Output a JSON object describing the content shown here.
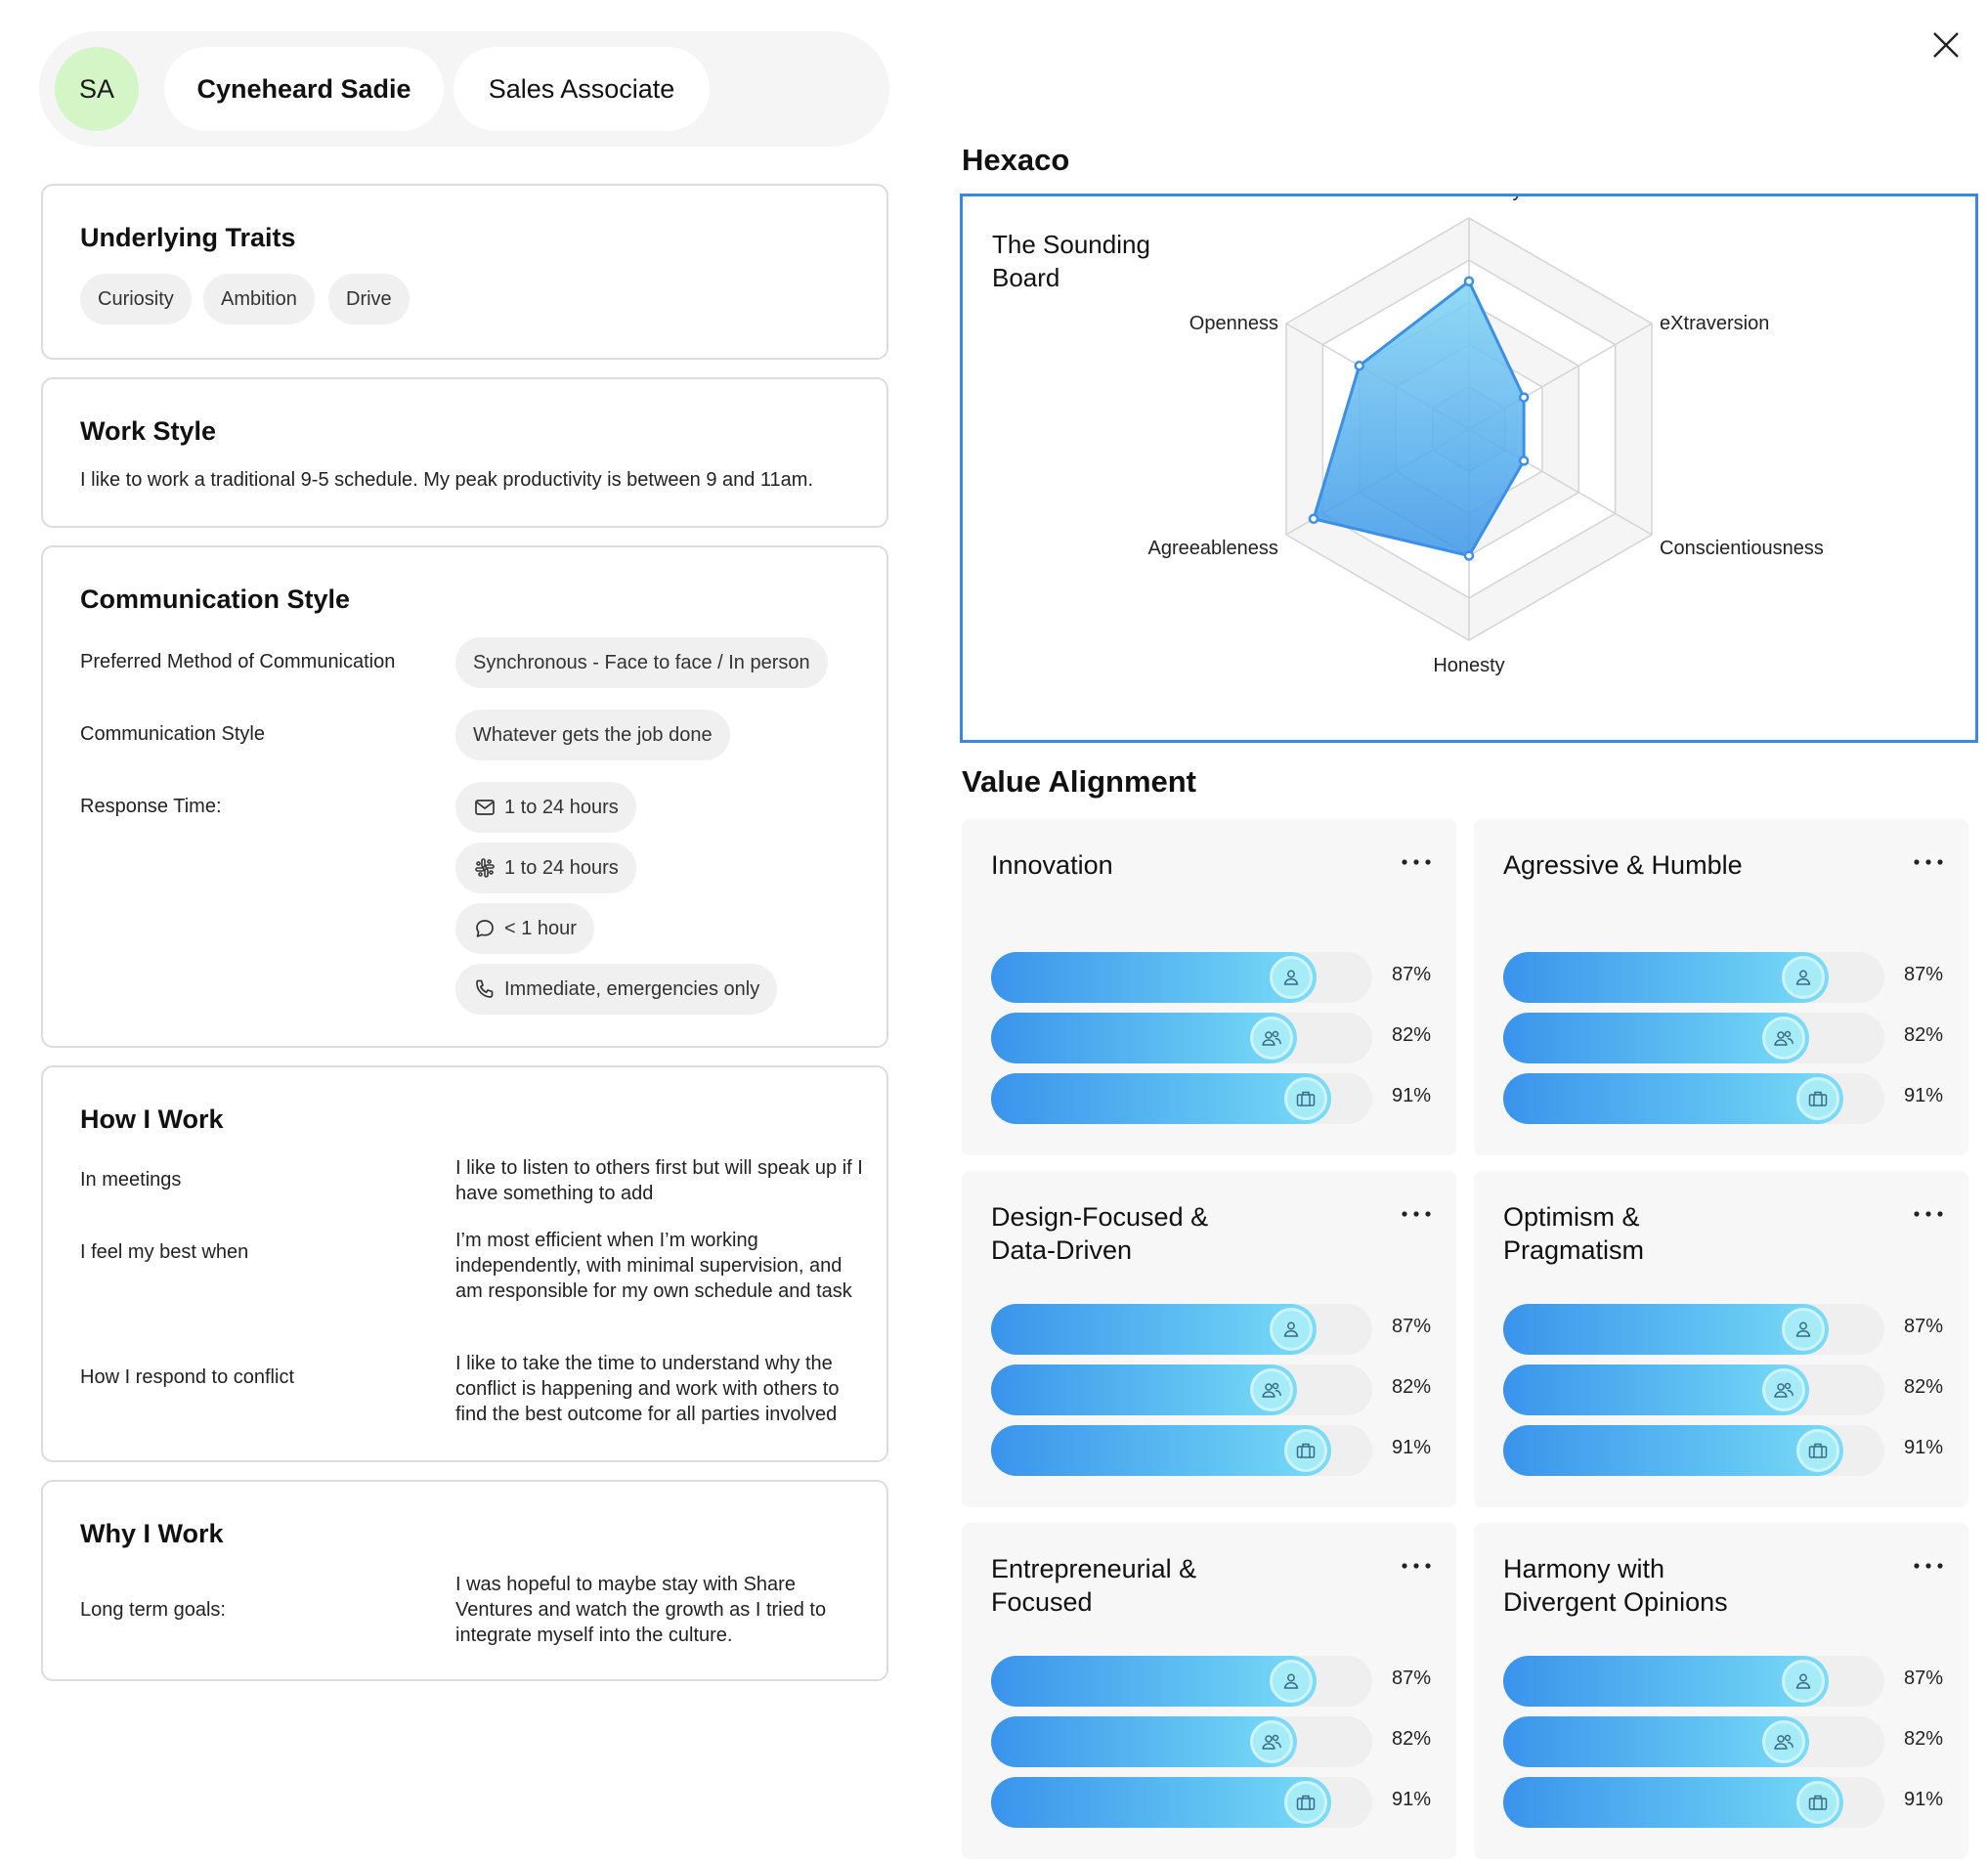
{
  "profile": {
    "initials": "SA",
    "name": "Cyneheard Sadie",
    "role": "Sales Associate"
  },
  "traits": {
    "title": "Underlying Traits",
    "items": [
      "Curiosity",
      "Ambition",
      "Drive"
    ]
  },
  "work_style": {
    "title": "Work Style",
    "text": "I like to work a traditional 9-5 schedule. My peak productivity is between 9 and 11am."
  },
  "communication": {
    "title": "Communication Style",
    "preferred_label": "Preferred Method of Communication",
    "preferred_value": "Synchronous - Face to face / In person",
    "style_label": "Communication Style",
    "style_value": "Whatever gets the job done",
    "response_label": "Response Time:",
    "responses": [
      {
        "icon": "mail-icon",
        "text": "1 to 24 hours"
      },
      {
        "icon": "slack-icon",
        "text": "1 to 24 hours"
      },
      {
        "icon": "chat-bubble-icon",
        "text": "< 1 hour"
      },
      {
        "icon": "phone-icon",
        "text": "Immediate, emergencies only"
      }
    ]
  },
  "how_i_work": {
    "title": "How I Work",
    "rows": [
      {
        "label": "In meetings",
        "value": "I like to listen to others first but will speak up if I have something to add"
      },
      {
        "label": "I feel my best when",
        "value": "I’m most efficient when I’m working independently, with minimal supervision, and am responsible for my own schedule and task"
      },
      {
        "label": "How I respond to conflict",
        "value": "I like to take the time to understand why the conflict is happening and work with others to find the best outcome for all parties involved"
      }
    ]
  },
  "why_i_work": {
    "title": "Why I Work",
    "label": "Long term goals:",
    "value": "I was hopeful to maybe stay with Share Ventures and watch the growth as I tried to integrate myself into the culture."
  },
  "hexaco": {
    "title": "Hexaco",
    "subtitle": "The Sounding Board",
    "chart_data": {
      "type": "radar",
      "axes": [
        "Emotionality",
        "eXtraversion",
        "Conscientiousness",
        "Honesty",
        "Agreeableness",
        "Openness"
      ],
      "values": [
        0.7,
        0.3,
        0.3,
        0.6,
        0.85,
        0.6
      ],
      "scale_max": 1,
      "rings": 5,
      "accent": "#3b8fe6"
    }
  },
  "value_alignment": {
    "title": "Value Alignment",
    "bar_icons": [
      "person-icon",
      "people-icon",
      "briefcase-icon"
    ],
    "cards": [
      {
        "title": "Innovation",
        "bars": [
          87,
          82,
          91
        ]
      },
      {
        "title": "Agressive & Humble",
        "bars": [
          87,
          82,
          91
        ]
      },
      {
        "title": "Design-Focused & Data-Driven",
        "bars": [
          87,
          82,
          91
        ]
      },
      {
        "title": "Optimism & Pragmatism",
        "bars": [
          87,
          82,
          91
        ]
      },
      {
        "title": "Entrepreneurial & Focused",
        "bars": [
          87,
          82,
          91
        ]
      },
      {
        "title": "Harmony with Divergent Opinions",
        "bars": [
          87,
          82,
          91
        ]
      }
    ]
  }
}
